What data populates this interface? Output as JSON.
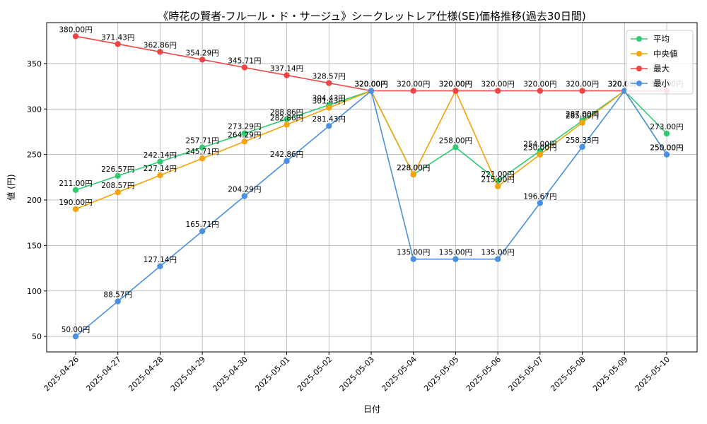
{
  "chart_data": {
    "type": "line",
    "title": "《時花の賢者-フルール・ド・サージュ》シークレットレア仕様(SE)価格推移(過去30日間)",
    "xlabel": "日付",
    "ylabel": "値 (円)",
    "ylim": [
      33,
      395
    ],
    "yticks": [
      50,
      100,
      150,
      200,
      250,
      300,
      350
    ],
    "grid": true,
    "legend_position": "top-right",
    "unit_suffix": "円",
    "categories": [
      "2025-04-26",
      "2025-04-27",
      "2025-04-28",
      "2025-04-29",
      "2025-04-30",
      "2025-05-01",
      "2025-05-02",
      "2025-05-03",
      "2025-05-04",
      "2025-05-05",
      "2025-05-06",
      "2025-05-07",
      "2025-05-08",
      "2025-05-09",
      "2025-05-10"
    ],
    "series": [
      {
        "name": "平均",
        "color": "#2ecc71",
        "values": [
          211.0,
          226.57,
          242.14,
          257.71,
          273.29,
          288.86,
          304.43,
          320.0,
          228.0,
          258.0,
          221.0,
          254.0,
          287.0,
          320.0,
          273.0
        ]
      },
      {
        "name": "中央値",
        "color": "#f5a30a",
        "values": [
          190.0,
          208.57,
          227.14,
          245.71,
          264.29,
          282.86,
          301.43,
          320.0,
          228.0,
          320.0,
          215.0,
          250.0,
          285.0,
          320.0,
          250.0
        ]
      },
      {
        "name": "最大",
        "color": "#ef4444",
        "values": [
          380.0,
          371.43,
          362.86,
          354.29,
          345.71,
          337.14,
          328.57,
          320.0,
          320.0,
          320.0,
          320.0,
          320.0,
          320.0,
          320.0,
          320.0
        ]
      },
      {
        "name": "最小",
        "color": "#4a90e2",
        "values": [
          50.0,
          88.57,
          127.14,
          165.71,
          204.29,
          242.86,
          281.43,
          320.0,
          135.0,
          135.0,
          135.0,
          196.67,
          258.33,
          320.0,
          250.0
        ]
      }
    ]
  }
}
